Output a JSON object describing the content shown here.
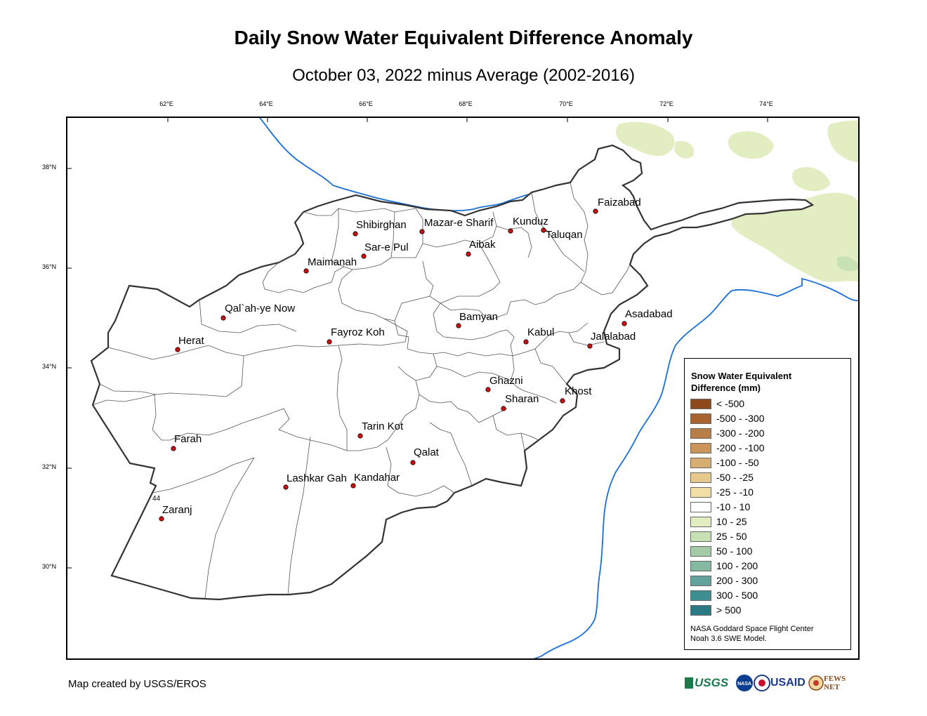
{
  "title": "Daily Snow Water Equivalent Difference Anomaly",
  "subtitle": "October 03, 2022 minus Average (2002-2016)",
  "lon_ticks": [
    "62°E",
    "64°E",
    "66°E",
    "68°E",
    "70°E",
    "72°E",
    "74°E"
  ],
  "lat_ticks": [
    "38°N",
    "36°N",
    "34°N",
    "32°N",
    "30°N"
  ],
  "cities": [
    {
      "name": "Faizabad"
    },
    {
      "name": "Shibirghan"
    },
    {
      "name": "Mazar-e Sharif"
    },
    {
      "name": "Kunduz"
    },
    {
      "name": "Taluqan"
    },
    {
      "name": "Sar-e Pul"
    },
    {
      "name": "Aibak"
    },
    {
      "name": "Maimanah"
    },
    {
      "name": "Qal`ah-ye Now"
    },
    {
      "name": "Asadabad"
    },
    {
      "name": "Bamyan"
    },
    {
      "name": "Kabul"
    },
    {
      "name": "Jalalabad"
    },
    {
      "name": "Fayroz Koh"
    },
    {
      "name": "Herat"
    },
    {
      "name": "Ghazni"
    },
    {
      "name": "Khost"
    },
    {
      "name": "Sharan"
    },
    {
      "name": "Tarin Kot"
    },
    {
      "name": "Farah"
    },
    {
      "name": "Qalat"
    },
    {
      "name": "Lashkar Gah"
    },
    {
      "name": "Kandahar"
    },
    {
      "name": "Zaranj"
    }
  ],
  "stray_label": "44",
  "legend": {
    "title_line1": "Snow Water Equivalent",
    "title_line2": "Difference (mm)",
    "items": [
      {
        "label": "< -500",
        "color": "#8c4a1c"
      },
      {
        "label": "-500 - -300",
        "color": "#a8642e"
      },
      {
        "label": "-300 - -200",
        "color": "#b77f47"
      },
      {
        "label": "-200 - -100",
        "color": "#c9955a"
      },
      {
        "label": "-100 - -50",
        "color": "#d7ad72"
      },
      {
        "label": "-50 - -25",
        "color": "#e8c98d"
      },
      {
        "label": "-25 - -10",
        "color": "#f2dfa5"
      },
      {
        "label": "-10 - 10",
        "color": "#ffffff"
      },
      {
        "label": "10 - 25",
        "color": "#e2eec2"
      },
      {
        "label": "25 - 50",
        "color": "#c7e0b4"
      },
      {
        "label": "50 - 100",
        "color": "#a3cba5"
      },
      {
        "label": "100 - 200",
        "color": "#86b9a1"
      },
      {
        "label": "200 - 300",
        "color": "#64a39b"
      },
      {
        "label": "300 - 500",
        "color": "#3f8f92"
      },
      {
        "label": "> 500",
        "color": "#2a7a86"
      }
    ],
    "credit_line1": "NASA Goddard Space Flight Center",
    "credit_line2": "Noah 3.6 SWE Model."
  },
  "footer_credit": "Map created by USGS/EROS",
  "logos": {
    "usgs": "USGS",
    "nasa": "NASA",
    "usaid": "USAID",
    "fewsnet": "FEWS NET"
  },
  "colors": {
    "border_line": "#333333",
    "river": "#1a6fd8",
    "snow_light": "#e2eec2",
    "city_dot": "#d01010"
  }
}
